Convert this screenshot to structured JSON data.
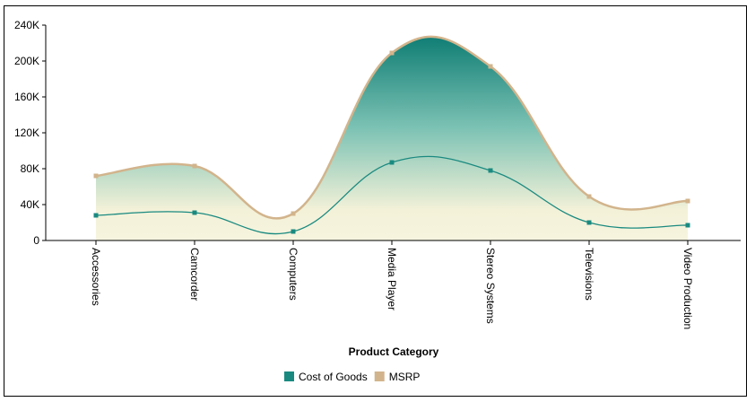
{
  "chart_data": {
    "type": "area",
    "title": "",
    "xlabel": "Product Category",
    "ylabel": "",
    "categories": [
      "Accessories",
      "Camcorder",
      "Computers",
      "Media Player",
      "Stereo Systems",
      "Televisions",
      "Video Production"
    ],
    "series": [
      {
        "name": "Cost of Goods",
        "color": "#1a8a80",
        "values": [
          28000,
          31000,
          10000,
          87000,
          78000,
          20000,
          17000
        ]
      },
      {
        "name": "MSRP",
        "color": "#d2b48c",
        "values": [
          72000,
          83000,
          30000,
          209000,
          194000,
          49000,
          44000
        ]
      }
    ],
    "y_ticks": [
      "0",
      "40K",
      "80K",
      "120K",
      "160K",
      "200K",
      "240K"
    ],
    "y_tick_values": [
      0,
      40000,
      80000,
      120000,
      160000,
      200000,
      240000
    ],
    "ylim": [
      0,
      240000
    ],
    "grid": false,
    "legend_position": "bottom",
    "curve": "smooth",
    "fill_colors": {
      "top": "#16827a",
      "bottom": "#f5f3dc"
    }
  }
}
